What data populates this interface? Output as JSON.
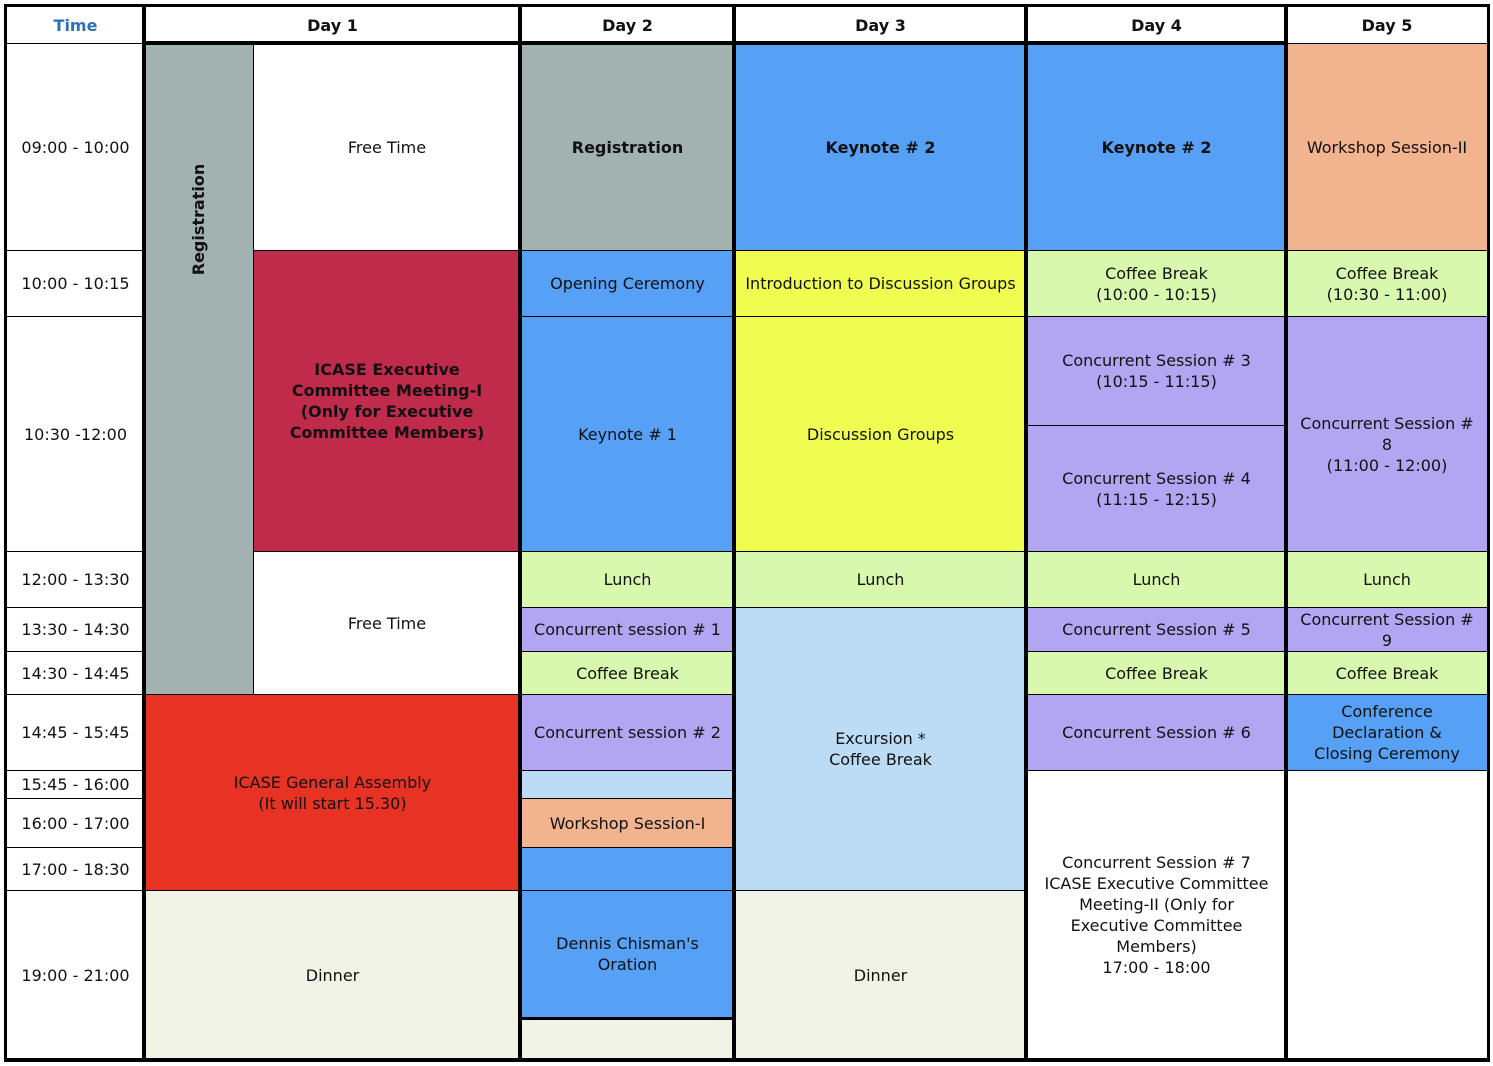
{
  "header": {
    "time": "Time",
    "days": [
      "Day 1",
      "Day 2",
      "Day 3",
      "Day 4",
      "Day 5"
    ]
  },
  "time_slots": [
    "09:00 - 10:00",
    "10:00 - 10:15",
    "10:30 -12:00",
    "12:00 - 13:30",
    "13:30 - 14:30",
    "14:30 - 14:45",
    "14:45 - 15:45",
    "15:45 - 16:00",
    "16:00 - 17:00",
    "17:00 - 18:30",
    "19:00 - 21:00"
  ],
  "colors": {
    "grey": "#a2b2b0",
    "white": "#ffffff",
    "crimson": "#c02b4c",
    "red": "#e83224",
    "dinner": "#eff2e4",
    "blue": "#56a0f6",
    "light_green": "#d8f8ae",
    "purple": "#b2a6f2",
    "light_blue": "#bcdcf5",
    "salmon": "#f2b38f",
    "yellow": "#f0fd50",
    "time_header": "#2c72b8"
  },
  "day1": {
    "registration": "Registration",
    "free_time_1": "Free Time",
    "exec_meeting": "ICASE Executive Committee Meeting-I (Only for Executive Committee Members)",
    "free_time_2": "Free Time",
    "general_assembly": "ICASE General Assembly\n(It will start 15.30)",
    "dinner": "Dinner"
  },
  "day2": {
    "registration": "Registration",
    "opening": "Opening Ceremony",
    "keynote1": "Keynote # 1",
    "lunch": "Lunch",
    "cs1": "Concurrent session # 1",
    "coffee": "Coffee Break",
    "cs2": "Concurrent session # 2",
    "workshop1": "Workshop Session-I",
    "oration": "Dennis Chisman's Oration"
  },
  "day3": {
    "keynote2": "Keynote # 2",
    "intro": "Introduction to Discussion Groups",
    "discussion": "Discussion Groups",
    "lunch": "Lunch",
    "excursion": "Excursion *\nCoffee Break",
    "dinner": "Dinner"
  },
  "day4": {
    "keynote2": "Keynote # 2",
    "coffee1": "Coffee Break\n(10:00 - 10:15)",
    "cs3": "Concurrent Session # 3\n(10:15 - 11:15)",
    "cs4": "Concurrent Session # 4\n(11:15 - 12:15)",
    "lunch": "Lunch",
    "cs5": "Concurrent Session # 5",
    "coffee2": "Coffee Break",
    "cs6": "Concurrent Session # 6",
    "cs7": "Concurrent Session # 7\nICASE Executive Committee Meeting-II (Only for Executive Committee Members)\n17:00 - 18:00"
  },
  "day5": {
    "workshop2": "Workshop Session-II",
    "coffee1": "Coffee Break\n(10:30 - 11:00)",
    "cs8": "Concurrent Session # 8\n(11:00 - 12:00)",
    "lunch": "Lunch",
    "cs9": "Concurrent Session # 9",
    "coffee2": "Coffee Break",
    "closing": "Conference Declaration & Closing Ceremony"
  }
}
